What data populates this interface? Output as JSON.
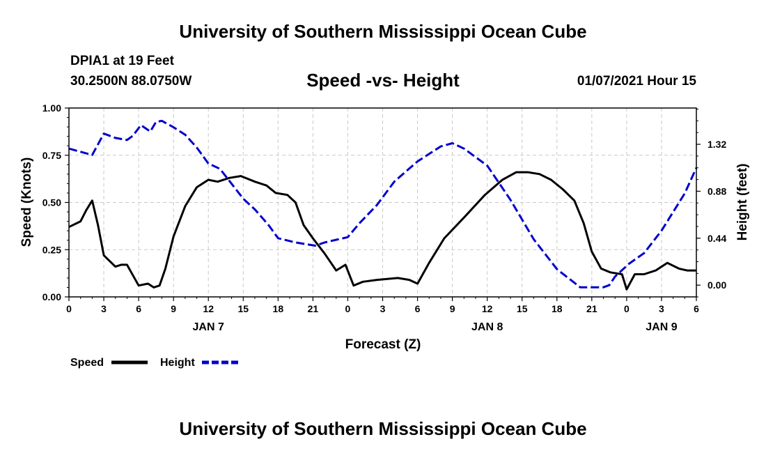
{
  "header": {
    "title": "University of Southern Mississippi Ocean Cube",
    "station": "DPIA1 at 19 Feet",
    "coords": "30.2500N 88.0750W",
    "subtitle": "Speed -vs- Height",
    "datetime": "01/07/2021 Hour 15"
  },
  "footer": {
    "title": "University of Southern Mississippi Ocean Cube"
  },
  "chart_data": {
    "type": "line",
    "title": "Speed -vs- Height",
    "xlabel": "Forecast (Z)",
    "ylabel": "Speed (Knots)",
    "y2label": "Height (feet)",
    "x_range_hours": [
      0,
      54
    ],
    "x_ticks": [
      {
        "h": 0,
        "label": "0"
      },
      {
        "h": 3,
        "label": "3"
      },
      {
        "h": 6,
        "label": "6"
      },
      {
        "h": 9,
        "label": "9"
      },
      {
        "h": 12,
        "label": "12"
      },
      {
        "h": 15,
        "label": "15"
      },
      {
        "h": 18,
        "label": "18"
      },
      {
        "h": 21,
        "label": "21"
      },
      {
        "h": 24,
        "label": "0"
      },
      {
        "h": 27,
        "label": "3"
      },
      {
        "h": 30,
        "label": "6"
      },
      {
        "h": 33,
        "label": "9"
      },
      {
        "h": 36,
        "label": "12"
      },
      {
        "h": 39,
        "label": "15"
      },
      {
        "h": 42,
        "label": "18"
      },
      {
        "h": 45,
        "label": "21"
      },
      {
        "h": 48,
        "label": "0"
      },
      {
        "h": 51,
        "label": "3"
      },
      {
        "h": 54,
        "label": "6"
      }
    ],
    "date_labels": [
      {
        "h": 12,
        "label": "JAN 7"
      },
      {
        "h": 36,
        "label": "JAN 8"
      },
      {
        "h": 51,
        "label": "JAN 9"
      }
    ],
    "y_left": {
      "range": [
        0,
        1
      ],
      "ticks": [
        0,
        0.25,
        0.5,
        0.75,
        1.0
      ],
      "tick_labels": [
        "0.00",
        "0.25",
        "0.50",
        "0.75",
        "1.00"
      ]
    },
    "y_right": {
      "range": [
        -0.11,
        1.66
      ],
      "ticks": [
        0,
        0.44,
        0.88,
        1.32
      ],
      "tick_labels": [
        "0.00",
        "0.44",
        "0.88",
        "1.32"
      ]
    },
    "grid": true,
    "legend": {
      "position": "bottom-left",
      "speed_label": "Speed",
      "height_label": "Height"
    },
    "series": [
      {
        "name": "Speed",
        "axis": "left",
        "color": "#000000",
        "style": "solid",
        "x": [
          0,
          1,
          1.5,
          2,
          2.5,
          3,
          4,
          4.5,
          5,
          6,
          6.8,
          7.3,
          7.8,
          8.3,
          9,
          10,
          11,
          12,
          12.8,
          13.8,
          14.8,
          16,
          17,
          17.8,
          18.8,
          19.5,
          20.2,
          21,
          22,
          23,
          23.8,
          24.5,
          25.3,
          26.5,
          28.3,
          29.3,
          30,
          31,
          32.3,
          34,
          35.8,
          37.3,
          38.5,
          39.5,
          40.5,
          41.5,
          42.5,
          43.5,
          44.3,
          45,
          45.8,
          46.6,
          47.6,
          48,
          48.7,
          49.5,
          50.5,
          51.5,
          52.5,
          53.2,
          54
        ],
        "values": [
          0.37,
          0.4,
          0.46,
          0.51,
          0.38,
          0.22,
          0.16,
          0.17,
          0.17,
          0.06,
          0.07,
          0.05,
          0.06,
          0.15,
          0.32,
          0.48,
          0.58,
          0.62,
          0.61,
          0.63,
          0.64,
          0.61,
          0.59,
          0.55,
          0.54,
          0.5,
          0.38,
          0.31,
          0.23,
          0.14,
          0.17,
          0.06,
          0.08,
          0.09,
          0.1,
          0.09,
          0.07,
          0.18,
          0.31,
          0.42,
          0.54,
          0.62,
          0.66,
          0.66,
          0.65,
          0.62,
          0.57,
          0.51,
          0.39,
          0.24,
          0.15,
          0.13,
          0.12,
          0.04,
          0.12,
          0.12,
          0.14,
          0.18,
          0.15,
          0.14,
          0.14
        ]
      },
      {
        "name": "Height",
        "axis": "right",
        "color": "#0000cc",
        "style": "dashed",
        "x": [
          0,
          2,
          3,
          4,
          5,
          5.5,
          6.2,
          7,
          7.5,
          8,
          9,
          10,
          11,
          12,
          13,
          14,
          15,
          16,
          17.2,
          18,
          19.5,
          21.2,
          22,
          24,
          25,
          26.5,
          28,
          30,
          32,
          33,
          34,
          36,
          38,
          40,
          42,
          44,
          45,
          46,
          46.5,
          47,
          48.2,
          49.5,
          51,
          53,
          54
        ],
        "values": [
          1.28,
          1.22,
          1.42,
          1.38,
          1.36,
          1.4,
          1.5,
          1.44,
          1.53,
          1.54,
          1.48,
          1.41,
          1.29,
          1.14,
          1.09,
          0.95,
          0.81,
          0.71,
          0.56,
          0.44,
          0.4,
          0.37,
          0.4,
          0.45,
          0.58,
          0.75,
          0.97,
          1.16,
          1.3,
          1.33,
          1.28,
          1.12,
          0.8,
          0.43,
          0.15,
          -0.02,
          -0.02,
          -0.02,
          0.0,
          0.08,
          0.2,
          0.3,
          0.51,
          0.86,
          1.1
        ]
      }
    ]
  }
}
